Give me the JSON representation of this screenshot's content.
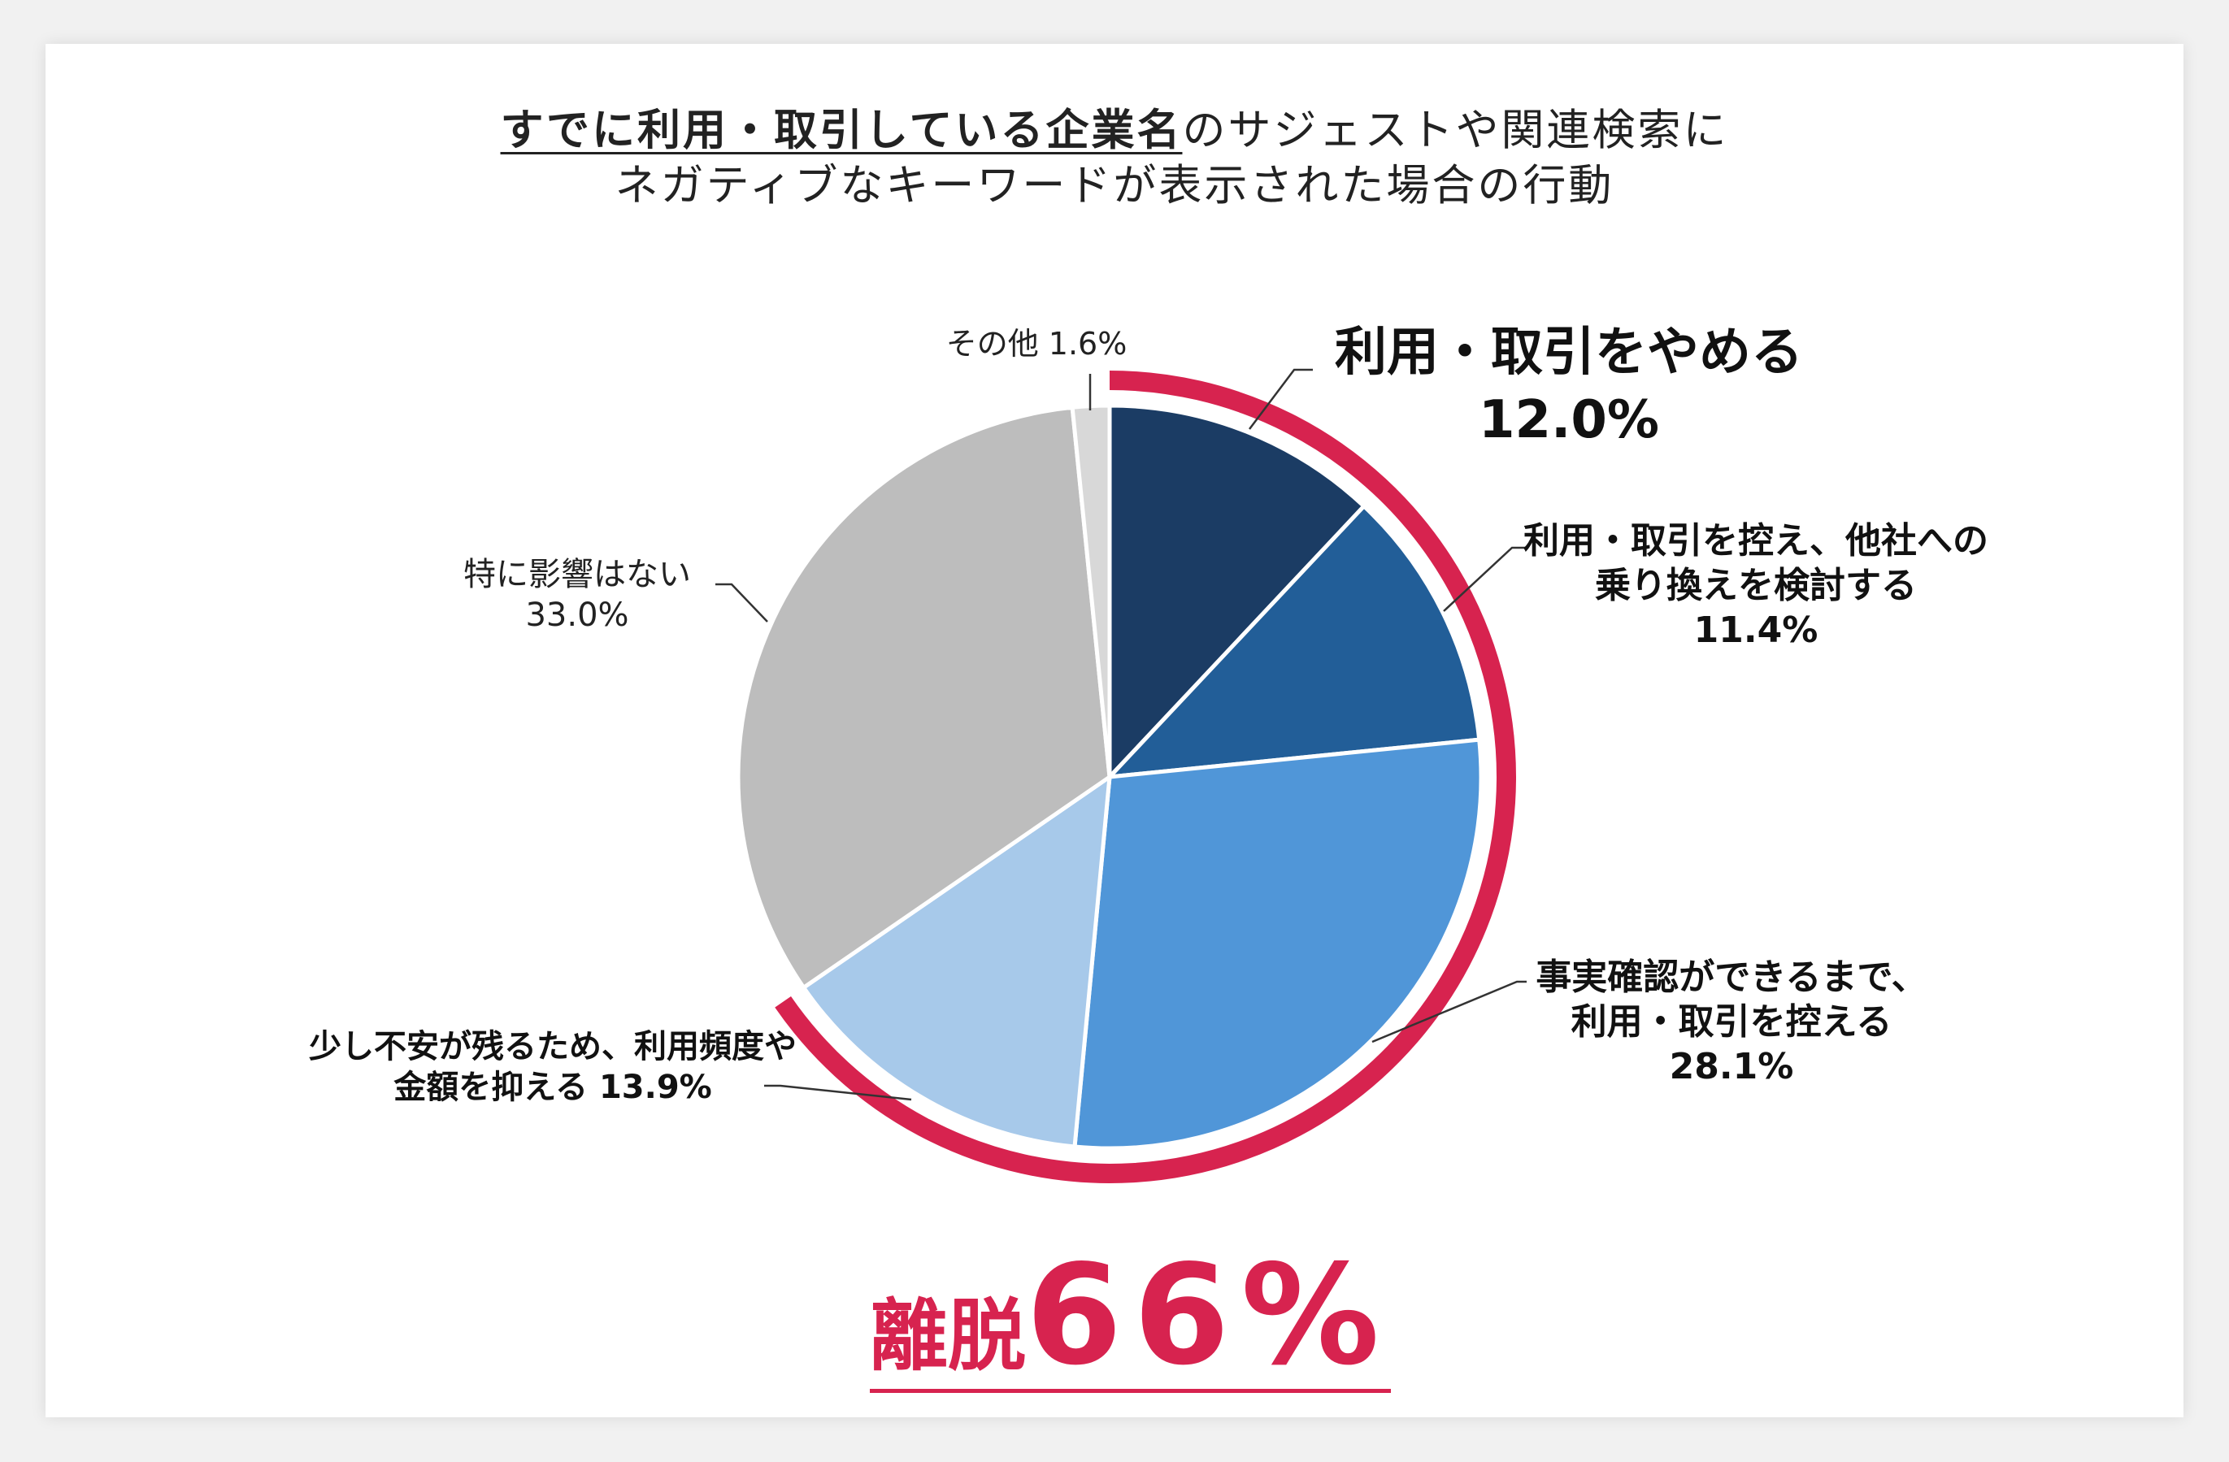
{
  "title": {
    "underlined": "すでに利用・取引している企業名",
    "line1_rest": "のサジェストや関連検索に",
    "line2": "ネガティブなキーワードが表示された場合の行動"
  },
  "colors": {
    "quit": "#1b3c64",
    "switch": "#225e98",
    "confirm": "#5096d8",
    "reduce": "#a7c9ea",
    "none": "#bdbdbd",
    "other": "#d8d8d8",
    "accent": "#d7234f"
  },
  "chart_data": {
    "type": "pie",
    "title": "すでに利用・取引している企業名のサジェストや関連検索にネガティブなキーワードが表示された場合の行動",
    "start": "top, clockwise",
    "slices": [
      {
        "key": "quit",
        "label": "利用・取引をやめる",
        "value": 12.0
      },
      {
        "key": "switch",
        "label": "利用・取引を控え、他社への乗り換えを検討する",
        "value": 11.4
      },
      {
        "key": "confirm",
        "label": "事実確認ができるまで、利用・取引を控える",
        "value": 28.1
      },
      {
        "key": "reduce",
        "label": "少し不安が残るため、利用頻度や金額を抑える",
        "value": 13.9
      },
      {
        "key": "none",
        "label": "特に影響はない",
        "value": 33.0
      },
      {
        "key": "other",
        "label": "その他",
        "value": 1.6
      }
    ],
    "highlight": {
      "label": "離脱",
      "value": "66%",
      "slices": [
        "quit",
        "switch",
        "confirm",
        "reduce"
      ]
    }
  },
  "labels": {
    "quit": {
      "l1": "利用・取引をやめる",
      "l2": "12.0%"
    },
    "switch": {
      "l1": "利用・取引を控え、他社への",
      "l2": "乗り換えを検討する",
      "l3": "11.4%"
    },
    "confirm": {
      "l1": "事実確認ができるまで、",
      "l2": "利用・取引を控える",
      "l3": "28.1%"
    },
    "reduce": {
      "l1": "少し不安が残るため、利用頻度や",
      "l2": "金額を抑える 13.9%"
    },
    "none": {
      "l1": "特に影響はない",
      "l2": "33.0%"
    },
    "other": {
      "l1": "その他 1.6%"
    }
  },
  "big": {
    "label": "離脱",
    "value": "66%"
  }
}
